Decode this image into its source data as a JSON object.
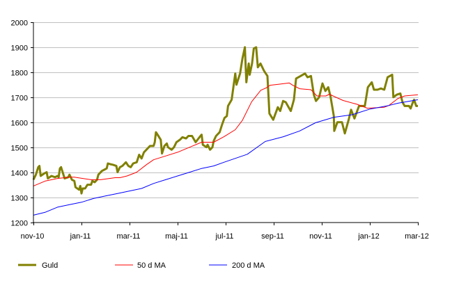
{
  "chart_data": {
    "type": "line",
    "title": "",
    "xlabel": "",
    "ylabel": "",
    "ylim": [
      1200,
      2000
    ],
    "yticks": [
      1200,
      1300,
      1400,
      1500,
      1600,
      1700,
      1800,
      1900,
      2000
    ],
    "xlim_months": [
      0,
      16
    ],
    "xticks": [
      {
        "month": 0,
        "label": "nov-10"
      },
      {
        "month": 2,
        "label": "jan-11"
      },
      {
        "month": 4,
        "label": "mar-11"
      },
      {
        "month": 6,
        "label": "maj-11"
      },
      {
        "month": 8,
        "label": "jul-11"
      },
      {
        "month": 10,
        "label": "sep-11"
      },
      {
        "month": 12,
        "label": "nov-11"
      },
      {
        "month": 14,
        "label": "jan-12"
      },
      {
        "month": 16,
        "label": "mar-12"
      }
    ],
    "grid": "horizontal",
    "legend_position": "bottom",
    "series": [
      {
        "name": "Guld",
        "color": "#808000",
        "width": 3,
        "points": [
          [
            0,
            1370
          ],
          [
            0.1,
            1390
          ],
          [
            0.2,
            1420
          ],
          [
            0.25,
            1425
          ],
          [
            0.3,
            1385
          ],
          [
            0.45,
            1395
          ],
          [
            0.55,
            1400
          ],
          [
            0.6,
            1375
          ],
          [
            0.75,
            1385
          ],
          [
            0.9,
            1380
          ],
          [
            1.0,
            1385
          ],
          [
            1.05,
            1380
          ],
          [
            1.1,
            1415
          ],
          [
            1.15,
            1420
          ],
          [
            1.2,
            1405
          ],
          [
            1.3,
            1375
          ],
          [
            1.45,
            1380
          ],
          [
            1.5,
            1390
          ],
          [
            1.6,
            1370
          ],
          [
            1.7,
            1365
          ],
          [
            1.75,
            1340
          ],
          [
            1.9,
            1330
          ],
          [
            1.95,
            1345
          ],
          [
            2.0,
            1315
          ],
          [
            2.05,
            1335
          ],
          [
            2.15,
            1335
          ],
          [
            2.25,
            1350
          ],
          [
            2.4,
            1350
          ],
          [
            2.45,
            1365
          ],
          [
            2.55,
            1360
          ],
          [
            2.65,
            1370
          ],
          [
            2.7,
            1390
          ],
          [
            2.85,
            1405
          ],
          [
            2.95,
            1410
          ],
          [
            3.05,
            1415
          ],
          [
            3.1,
            1435
          ],
          [
            3.2,
            1432
          ],
          [
            3.3,
            1430
          ],
          [
            3.45,
            1425
          ],
          [
            3.5,
            1400
          ],
          [
            3.6,
            1420
          ],
          [
            3.7,
            1425
          ],
          [
            3.85,
            1440
          ],
          [
            3.95,
            1425
          ],
          [
            4.05,
            1420
          ],
          [
            4.15,
            1435
          ],
          [
            4.3,
            1440
          ],
          [
            4.4,
            1470
          ],
          [
            4.5,
            1455
          ],
          [
            4.6,
            1480
          ],
          [
            4.7,
            1490
          ],
          [
            4.85,
            1505
          ],
          [
            5.0,
            1505
          ],
          [
            5.05,
            1520
          ],
          [
            5.1,
            1560
          ],
          [
            5.2,
            1545
          ],
          [
            5.3,
            1530
          ],
          [
            5.35,
            1475
          ],
          [
            5.45,
            1505
          ],
          [
            5.55,
            1515
          ],
          [
            5.6,
            1500
          ],
          [
            5.75,
            1490
          ],
          [
            5.85,
            1500
          ],
          [
            5.95,
            1520
          ],
          [
            6.1,
            1530
          ],
          [
            6.2,
            1540
          ],
          [
            6.35,
            1535
          ],
          [
            6.45,
            1545
          ],
          [
            6.6,
            1545
          ],
          [
            6.75,
            1520
          ],
          [
            6.95,
            1545
          ],
          [
            7.0,
            1550
          ],
          [
            7.05,
            1510
          ],
          [
            7.2,
            1500
          ],
          [
            7.25,
            1510
          ],
          [
            7.35,
            1490
          ],
          [
            7.45,
            1500
          ],
          [
            7.5,
            1525
          ],
          [
            7.6,
            1545
          ],
          [
            7.75,
            1560
          ],
          [
            7.85,
            1590
          ],
          [
            7.95,
            1617
          ],
          [
            8.05,
            1625
          ],
          [
            8.1,
            1665
          ],
          [
            8.25,
            1690
          ],
          [
            8.4,
            1795
          ],
          [
            8.45,
            1750
          ],
          [
            8.6,
            1795
          ],
          [
            8.7,
            1855
          ],
          [
            8.8,
            1900
          ],
          [
            8.86,
            1760
          ],
          [
            8.96,
            1835
          ],
          [
            9.0,
            1790
          ],
          [
            9.1,
            1835
          ],
          [
            9.17,
            1895
          ],
          [
            9.27,
            1900
          ],
          [
            9.34,
            1820
          ],
          [
            9.45,
            1835
          ],
          [
            9.6,
            1805
          ],
          [
            9.74,
            1785
          ],
          [
            9.82,
            1635
          ],
          [
            9.98,
            1610
          ],
          [
            10.17,
            1660
          ],
          [
            10.27,
            1645
          ],
          [
            10.39,
            1685
          ],
          [
            10.5,
            1680
          ],
          [
            10.65,
            1655
          ],
          [
            10.71,
            1645
          ],
          [
            10.84,
            1690
          ],
          [
            10.93,
            1775
          ],
          [
            11.12,
            1785
          ],
          [
            11.3,
            1795
          ],
          [
            11.41,
            1780
          ],
          [
            11.55,
            1785
          ],
          [
            11.67,
            1710
          ],
          [
            11.76,
            1685
          ],
          [
            11.89,
            1700
          ],
          [
            12.03,
            1755
          ],
          [
            12.15,
            1725
          ],
          [
            12.27,
            1740
          ],
          [
            12.36,
            1705
          ],
          [
            12.5,
            1625
          ],
          [
            12.52,
            1565
          ],
          [
            12.65,
            1600
          ],
          [
            12.84,
            1600
          ],
          [
            12.96,
            1555
          ],
          [
            13.12,
            1610
          ],
          [
            13.22,
            1650
          ],
          [
            13.36,
            1615
          ],
          [
            13.55,
            1665
          ],
          [
            13.79,
            1665
          ],
          [
            13.92,
            1740
          ],
          [
            14.08,
            1760
          ],
          [
            14.17,
            1730
          ],
          [
            14.32,
            1730
          ],
          [
            14.46,
            1735
          ],
          [
            14.6,
            1730
          ],
          [
            14.74,
            1780
          ],
          [
            14.93,
            1790
          ],
          [
            14.98,
            1700
          ],
          [
            15.12,
            1710
          ],
          [
            15.27,
            1715
          ],
          [
            15.36,
            1680
          ],
          [
            15.45,
            1665
          ],
          [
            15.63,
            1665
          ],
          [
            15.7,
            1655
          ],
          [
            15.79,
            1680
          ],
          [
            15.84,
            1690
          ],
          [
            15.93,
            1665
          ],
          [
            16.0,
            1665
          ]
        ]
      },
      {
        "name": "50 d MA",
        "color": "#ff0000",
        "width": 1,
        "points": [
          [
            0,
            1345
          ],
          [
            0.5,
            1365
          ],
          [
            1,
            1375
          ],
          [
            1.5,
            1380
          ],
          [
            1.7,
            1380
          ],
          [
            2.4,
            1370
          ],
          [
            2.8,
            1370
          ],
          [
            3.4,
            1378
          ],
          [
            3.6,
            1378
          ],
          [
            3.9,
            1385
          ],
          [
            4.3,
            1400
          ],
          [
            4.7,
            1430
          ],
          [
            5.0,
            1450
          ],
          [
            5.5,
            1465
          ],
          [
            6.0,
            1480
          ],
          [
            6.5,
            1500
          ],
          [
            7.0,
            1520
          ],
          [
            7.5,
            1520
          ],
          [
            7.93,
            1542
          ],
          [
            8.4,
            1570
          ],
          [
            8.7,
            1608
          ],
          [
            9.08,
            1682
          ],
          [
            9.46,
            1728
          ],
          [
            9.7,
            1738
          ],
          [
            9.84,
            1748
          ],
          [
            10.22,
            1752
          ],
          [
            10.65,
            1757
          ],
          [
            10.79,
            1748
          ],
          [
            11.08,
            1734
          ],
          [
            11.55,
            1730
          ],
          [
            11.8,
            1705
          ],
          [
            12.17,
            1705
          ],
          [
            12.31,
            1712
          ],
          [
            12.89,
            1687
          ],
          [
            13.46,
            1672
          ],
          [
            13.9,
            1656
          ],
          [
            14.6,
            1660
          ],
          [
            14.79,
            1667
          ],
          [
            15.17,
            1695
          ],
          [
            15.45,
            1705
          ],
          [
            16.0,
            1710
          ]
        ]
      },
      {
        "name": "200 d MA",
        "color": "#0000ff",
        "width": 1,
        "points": [
          [
            0,
            1228
          ],
          [
            0.5,
            1240
          ],
          [
            1,
            1260
          ],
          [
            1.5,
            1270
          ],
          [
            2,
            1280
          ],
          [
            2.5,
            1295
          ],
          [
            3,
            1305
          ],
          [
            3.5,
            1315
          ],
          [
            4,
            1325
          ],
          [
            4.5,
            1335
          ],
          [
            5,
            1355
          ],
          [
            5.5,
            1370
          ],
          [
            6,
            1385
          ],
          [
            6.5,
            1400
          ],
          [
            7,
            1415
          ],
          [
            7.5,
            1425
          ],
          [
            7.93,
            1440
          ],
          [
            8.9,
            1472
          ],
          [
            9.65,
            1523
          ],
          [
            10.4,
            1542
          ],
          [
            11.08,
            1565
          ],
          [
            11.74,
            1598
          ],
          [
            12.5,
            1620
          ],
          [
            13.26,
            1630
          ],
          [
            14.02,
            1653
          ],
          [
            14.79,
            1667
          ],
          [
            15.17,
            1676
          ],
          [
            16.0,
            1690
          ]
        ]
      }
    ]
  }
}
